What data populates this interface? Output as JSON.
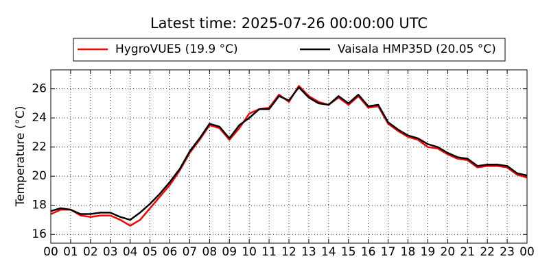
{
  "chart_data": {
    "type": "line",
    "title": "Latest time: 2025-07-26 00:00:00 UTC",
    "ylabel": "Temperature (°C)",
    "x": [
      0,
      0.5,
      1,
      1.5,
      2,
      2.5,
      3,
      3.5,
      4,
      4.5,
      5,
      5.5,
      6,
      6.5,
      7,
      7.5,
      8,
      8.5,
      9,
      9.5,
      10,
      10.5,
      11,
      11.5,
      12,
      12.5,
      13,
      13.5,
      14,
      14.5,
      15,
      15.5,
      16,
      16.5,
      17,
      17.5,
      18,
      18.5,
      19,
      19.5,
      20,
      20.5,
      21,
      21.5,
      22,
      22.5,
      23,
      23.5,
      24
    ],
    "series": [
      {
        "name": "HygroVUE5 (19.9 °C)",
        "color": "#ff0000",
        "values": [
          17.4,
          17.7,
          17.7,
          17.3,
          17.2,
          17.3,
          17.3,
          17.0,
          16.6,
          17.0,
          17.8,
          18.6,
          19.4,
          20.4,
          21.6,
          22.5,
          23.5,
          23.3,
          22.5,
          23.3,
          24.3,
          24.6,
          24.7,
          25.6,
          25.1,
          26.2,
          25.5,
          25.1,
          24.9,
          25.4,
          24.9,
          25.5,
          24.7,
          24.8,
          23.6,
          23.1,
          22.7,
          22.5,
          22.0,
          21.9,
          21.5,
          21.2,
          21.1,
          20.6,
          20.7,
          20.7,
          20.6,
          20.1,
          19.9
        ]
      },
      {
        "name": "Vaisala HMP35D (20.05 °C)",
        "color": "#000000",
        "values": [
          17.6,
          17.8,
          17.7,
          17.4,
          17.4,
          17.5,
          17.5,
          17.2,
          17.0,
          17.5,
          18.1,
          18.8,
          19.6,
          20.5,
          21.7,
          22.6,
          23.6,
          23.4,
          22.6,
          23.5,
          24.0,
          24.6,
          24.6,
          25.5,
          25.2,
          26.1,
          25.4,
          25.0,
          24.9,
          25.5,
          25.0,
          25.6,
          24.8,
          24.9,
          23.7,
          23.2,
          22.8,
          22.6,
          22.2,
          22.0,
          21.6,
          21.3,
          21.2,
          20.7,
          20.8,
          20.8,
          20.7,
          20.2,
          20.05
        ]
      }
    ],
    "xlim": [
      0,
      24
    ],
    "xticks": [
      {
        "value": 0,
        "label": "00"
      },
      {
        "value": 1,
        "label": "01"
      },
      {
        "value": 2,
        "label": "02"
      },
      {
        "value": 3,
        "label": "03"
      },
      {
        "value": 4,
        "label": "04"
      },
      {
        "value": 5,
        "label": "05"
      },
      {
        "value": 6,
        "label": "06"
      },
      {
        "value": 7,
        "label": "07"
      },
      {
        "value": 8,
        "label": "08"
      },
      {
        "value": 9,
        "label": "09"
      },
      {
        "value": 10,
        "label": "10"
      },
      {
        "value": 11,
        "label": "11"
      },
      {
        "value": 12,
        "label": "12"
      },
      {
        "value": 13,
        "label": "13"
      },
      {
        "value": 14,
        "label": "14"
      },
      {
        "value": 15,
        "label": "15"
      },
      {
        "value": 16,
        "label": "16"
      },
      {
        "value": 17,
        "label": "17"
      },
      {
        "value": 18,
        "label": "18"
      },
      {
        "value": 19,
        "label": "19"
      },
      {
        "value": 20,
        "label": "20"
      },
      {
        "value": 21,
        "label": "21"
      },
      {
        "value": 22,
        "label": "22"
      },
      {
        "value": 23,
        "label": "23"
      },
      {
        "value": 24,
        "label": "00"
      }
    ],
    "ylim": [
      15.4,
      27.3
    ],
    "yticks": [
      16,
      18,
      20,
      22,
      24,
      26
    ],
    "grid": true,
    "legend": "top"
  }
}
